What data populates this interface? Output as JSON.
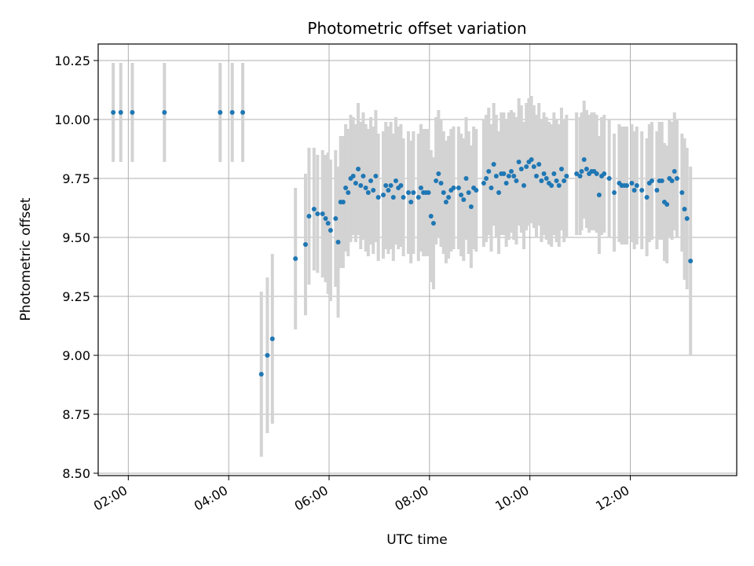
{
  "chart_data": {
    "type": "scatter",
    "title": "Photometric offset variation",
    "xlabel": "UTC time",
    "ylabel": "Photometric offset",
    "x_unit": "hours UTC",
    "xlim": [
      1.4,
      14.12
    ],
    "ylim": [
      8.49,
      10.32
    ],
    "xticks": [
      2,
      4,
      6,
      8,
      10,
      12
    ],
    "xtick_labels": [
      "02:00",
      "04:00",
      "06:00",
      "08:00",
      "10:00",
      "12:00"
    ],
    "yticks": [
      8.5,
      8.75,
      9.0,
      9.25,
      9.5,
      9.75,
      10.0,
      10.25
    ],
    "ytick_labels": [
      "8.50",
      "8.75",
      "9.00",
      "9.25",
      "9.50",
      "9.75",
      "10.00",
      "10.25"
    ],
    "grid": true,
    "colors": {
      "points": "#1f77b4",
      "errorbars": "#d3d3d3",
      "grid": "#b0b0b0"
    },
    "points": [
      [
        1.7,
        10.03,
        0.21
      ],
      [
        1.85,
        10.03,
        0.21
      ],
      [
        2.08,
        10.03,
        0.21
      ],
      [
        2.72,
        10.03,
        0.21
      ],
      [
        3.83,
        10.03,
        0.21
      ],
      [
        4.07,
        10.03,
        0.21
      ],
      [
        4.28,
        10.03,
        0.21
      ],
      [
        4.65,
        8.92,
        0.35
      ],
      [
        4.77,
        9.0,
        0.33
      ],
      [
        4.87,
        9.07,
        0.36
      ],
      [
        5.33,
        9.41,
        0.3
      ],
      [
        5.53,
        9.47,
        0.3
      ],
      [
        5.6,
        9.59,
        0.29
      ],
      [
        5.7,
        9.62,
        0.26
      ],
      [
        5.77,
        9.6,
        0.25
      ],
      [
        5.87,
        9.6,
        0.27
      ],
      [
        5.93,
        9.58,
        0.27
      ],
      [
        5.98,
        9.56,
        0.3
      ],
      [
        6.03,
        9.53,
        0.3
      ],
      [
        6.13,
        9.58,
        0.29
      ],
      [
        6.18,
        9.48,
        0.32
      ],
      [
        6.23,
        9.65,
        0.28
      ],
      [
        6.28,
        9.65,
        0.28
      ],
      [
        6.33,
        9.71,
        0.27
      ],
      [
        6.38,
        9.69,
        0.27
      ],
      [
        6.43,
        9.75,
        0.27
      ],
      [
        6.48,
        9.76,
        0.25
      ],
      [
        6.53,
        9.73,
        0.25
      ],
      [
        6.58,
        9.79,
        0.28
      ],
      [
        6.63,
        9.72,
        0.27
      ],
      [
        6.68,
        9.76,
        0.27
      ],
      [
        6.73,
        9.71,
        0.27
      ],
      [
        6.78,
        9.69,
        0.27
      ],
      [
        6.83,
        9.74,
        0.27
      ],
      [
        6.88,
        9.7,
        0.27
      ],
      [
        6.93,
        9.76,
        0.28
      ],
      [
        6.98,
        9.67,
        0.27
      ],
      [
        7.08,
        9.68,
        0.27
      ],
      [
        7.13,
        9.72,
        0.27
      ],
      [
        7.18,
        9.7,
        0.27
      ],
      [
        7.23,
        9.72,
        0.27
      ],
      [
        7.28,
        9.67,
        0.27
      ],
      [
        7.33,
        9.74,
        0.27
      ],
      [
        7.38,
        9.71,
        0.26
      ],
      [
        7.43,
        9.72,
        0.26
      ],
      [
        7.48,
        9.67,
        0.25
      ],
      [
        7.58,
        9.69,
        0.26
      ],
      [
        7.63,
        9.65,
        0.26
      ],
      [
        7.68,
        9.69,
        0.26
      ],
      [
        7.78,
        9.67,
        0.27
      ],
      [
        7.83,
        9.71,
        0.27
      ],
      [
        7.88,
        9.69,
        0.27
      ],
      [
        7.93,
        9.69,
        0.27
      ],
      [
        7.98,
        9.69,
        0.27
      ],
      [
        8.03,
        9.59,
        0.28
      ],
      [
        8.08,
        9.56,
        0.28
      ],
      [
        8.13,
        9.74,
        0.27
      ],
      [
        8.18,
        9.77,
        0.27
      ],
      [
        8.23,
        9.73,
        0.27
      ],
      [
        8.28,
        9.69,
        0.26
      ],
      [
        8.33,
        9.65,
        0.26
      ],
      [
        8.38,
        9.67,
        0.26
      ],
      [
        8.43,
        9.7,
        0.26
      ],
      [
        8.48,
        9.71,
        0.26
      ],
      [
        8.58,
        9.71,
        0.26
      ],
      [
        8.63,
        9.68,
        0.26
      ],
      [
        8.68,
        9.66,
        0.26
      ],
      [
        8.73,
        9.75,
        0.26
      ],
      [
        8.78,
        9.69,
        0.26
      ],
      [
        8.83,
        9.63,
        0.26
      ],
      [
        8.88,
        9.71,
        0.26
      ],
      [
        8.93,
        9.7,
        0.26
      ],
      [
        9.08,
        9.73,
        0.27
      ],
      [
        9.13,
        9.75,
        0.27
      ],
      [
        9.18,
        9.78,
        0.27
      ],
      [
        9.23,
        9.71,
        0.27
      ],
      [
        9.28,
        9.81,
        0.26
      ],
      [
        9.33,
        9.76,
        0.26
      ],
      [
        9.38,
        9.69,
        0.26
      ],
      [
        9.43,
        9.77,
        0.26
      ],
      [
        9.48,
        9.77,
        0.26
      ],
      [
        9.53,
        9.73,
        0.27
      ],
      [
        9.58,
        9.76,
        0.27
      ],
      [
        9.63,
        9.78,
        0.26
      ],
      [
        9.68,
        9.76,
        0.27
      ],
      [
        9.73,
        9.74,
        0.27
      ],
      [
        9.78,
        9.82,
        0.27
      ],
      [
        9.83,
        9.79,
        0.27
      ],
      [
        9.88,
        9.72,
        0.27
      ],
      [
        9.93,
        9.8,
        0.27
      ],
      [
        9.98,
        9.82,
        0.27
      ],
      [
        10.03,
        9.83,
        0.27
      ],
      [
        10.08,
        9.8,
        0.26
      ],
      [
        10.13,
        9.76,
        0.26
      ],
      [
        10.18,
        9.81,
        0.26
      ],
      [
        10.23,
        9.74,
        0.26
      ],
      [
        10.28,
        9.77,
        0.26
      ],
      [
        10.33,
        9.75,
        0.26
      ],
      [
        10.38,
        9.73,
        0.26
      ],
      [
        10.43,
        9.72,
        0.26
      ],
      [
        10.48,
        9.77,
        0.26
      ],
      [
        10.53,
        9.74,
        0.26
      ],
      [
        10.58,
        9.72,
        0.26
      ],
      [
        10.63,
        9.79,
        0.26
      ],
      [
        10.68,
        9.74,
        0.26
      ],
      [
        10.73,
        9.76,
        0.26
      ],
      [
        10.93,
        9.77,
        0.26
      ],
      [
        11.0,
        9.76,
        0.25
      ],
      [
        11.03,
        9.78,
        0.25
      ],
      [
        11.08,
        9.83,
        0.25
      ],
      [
        11.13,
        9.79,
        0.25
      ],
      [
        11.18,
        9.77,
        0.25
      ],
      [
        11.23,
        9.78,
        0.25
      ],
      [
        11.28,
        9.78,
        0.25
      ],
      [
        11.33,
        9.77,
        0.25
      ],
      [
        11.38,
        9.68,
        0.25
      ],
      [
        11.43,
        9.76,
        0.25
      ],
      [
        11.48,
        9.77,
        0.25
      ],
      [
        11.58,
        9.75,
        0.25
      ],
      [
        11.68,
        9.69,
        0.25
      ],
      [
        11.78,
        9.73,
        0.25
      ],
      [
        11.83,
        9.72,
        0.25
      ],
      [
        11.88,
        9.72,
        0.25
      ],
      [
        11.93,
        9.72,
        0.25
      ],
      [
        12.03,
        9.73,
        0.25
      ],
      [
        12.08,
        9.7,
        0.25
      ],
      [
        12.13,
        9.72,
        0.25
      ],
      [
        12.23,
        9.7,
        0.25
      ],
      [
        12.33,
        9.67,
        0.25
      ],
      [
        12.38,
        9.73,
        0.25
      ],
      [
        12.43,
        9.74,
        0.25
      ],
      [
        12.53,
        9.7,
        0.25
      ],
      [
        12.58,
        9.74,
        0.25
      ],
      [
        12.63,
        9.74,
        0.25
      ],
      [
        12.68,
        9.65,
        0.25
      ],
      [
        12.73,
        9.64,
        0.25
      ],
      [
        12.78,
        9.75,
        0.25
      ],
      [
        12.83,
        9.74,
        0.25
      ],
      [
        12.88,
        9.78,
        0.25
      ],
      [
        12.93,
        9.75,
        0.25
      ],
      [
        13.03,
        9.69,
        0.25
      ],
      [
        13.08,
        9.62,
        0.3
      ],
      [
        13.13,
        9.58,
        0.3
      ],
      [
        13.2,
        9.4,
        0.4
      ]
    ]
  }
}
